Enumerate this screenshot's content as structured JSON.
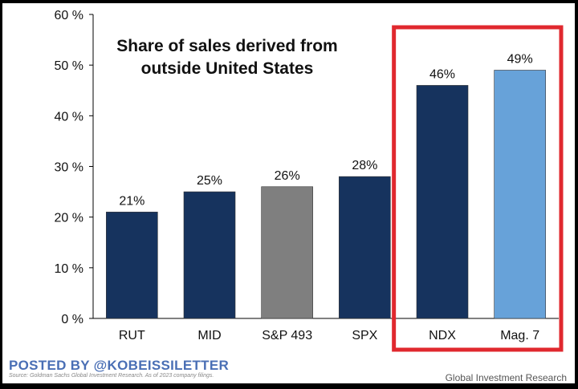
{
  "chart_data": {
    "type": "bar",
    "title": "Share of sales derived from\noutside United States",
    "categories": [
      "RUT",
      "MID",
      "S&P 493",
      "SPX",
      "NDX",
      "Mag. 7"
    ],
    "values": [
      21,
      25,
      26,
      28,
      46,
      49
    ],
    "data_labels": [
      "21%",
      "25%",
      "26%",
      "28%",
      "46%",
      "49%"
    ],
    "bar_colors": [
      "#16335e",
      "#16335e",
      "#7f7f7f",
      "#16335e",
      "#16335e",
      "#67a2d9"
    ],
    "ylim": [
      0,
      60
    ],
    "yticks": [
      0,
      10,
      20,
      30,
      40,
      50,
      60
    ],
    "ytick_labels": [
      "0 %",
      "10 %",
      "20 %",
      "30 %",
      "40 %",
      "50 %",
      "60 %"
    ],
    "xlabel": "",
    "ylabel": "",
    "grid": false,
    "highlight": {
      "categories": [
        "NDX",
        "Mag. 7"
      ],
      "color": "#e0282e"
    }
  },
  "watermark": "POSTED BY @KOBEISSILETTER",
  "source_note": "Source: Goldman Sachs Global Investment Research. As of 2023 company filings.",
  "footer_credit": "Global Investment Research"
}
